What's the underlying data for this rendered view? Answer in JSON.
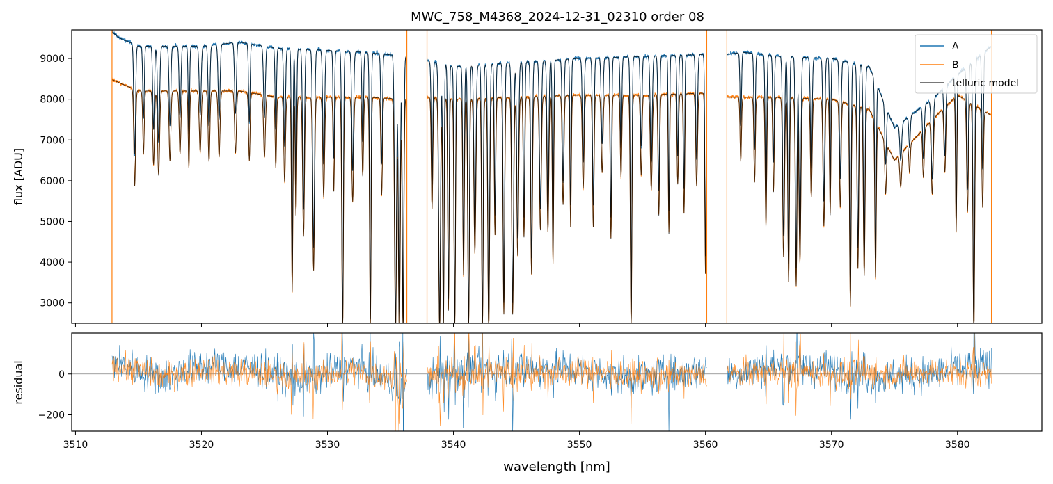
{
  "figure_title": "MWC_758_M4368_2024-12-31_02310  order 08",
  "colors": {
    "A": "#1f77b4",
    "B": "#ff7f0e",
    "model": "#000000",
    "zero_line": "#808080"
  },
  "legend": {
    "placement": "upper right",
    "items": [
      "A",
      "B",
      "telluric model"
    ]
  },
  "chart_data": [
    {
      "type": "line",
      "panel": "spectrum",
      "title": "MWC_758_M4368_2024-12-31_02310  order 08",
      "xlabel": "",
      "ylabel": "flux [ADU]",
      "xlim": [
        3509.7,
        3586.7
      ],
      "ylim": [
        2500,
        9700
      ],
      "grid": false,
      "xticks": [
        3510,
        3520,
        3530,
        3540,
        3550,
        3560,
        3570,
        3580
      ],
      "yticks": [
        3000,
        4000,
        5000,
        6000,
        7000,
        8000,
        9000
      ],
      "gaps": [
        [
          3536.3,
          3537.9
        ],
        [
          3560.1,
          3561.7
        ]
      ],
      "spikes_x": [
        3512.9,
        3536.3,
        3537.9,
        3560.1,
        3561.7,
        3582.7
      ],
      "continuum": {
        "A": {
          "x": [
            3512.9,
            3513.5,
            3515,
            3520,
            3523,
            3526,
            3530,
            3533,
            3536.3,
            3537.9,
            3540,
            3545,
            3550,
            3555,
            3560.1,
            3561.7,
            3563,
            3566,
            3570,
            3573,
            3575,
            3578,
            3580,
            3582.7
          ],
          "y": [
            9650,
            9500,
            9300,
            9300,
            9400,
            9250,
            9200,
            9150,
            9050,
            8950,
            8800,
            8900,
            9000,
            9050,
            9100,
            9100,
            9150,
            9050,
            9000,
            8800,
            7300,
            8000,
            8600,
            9300
          ]
        },
        "B": {
          "x": [
            3512.9,
            3515,
            3520,
            3523,
            3526,
            3530,
            3533,
            3536.3,
            3537.9,
            3540,
            3545,
            3550,
            3555,
            3560.1,
            3561.7,
            3565,
            3570,
            3573,
            3575,
            3578,
            3580,
            3582.7
          ],
          "y": [
            8480,
            8200,
            8200,
            8200,
            8050,
            8050,
            8050,
            8000,
            8050,
            8000,
            8050,
            8100,
            8100,
            8150,
            8050,
            8050,
            8000,
            7750,
            6500,
            7500,
            8100,
            7600
          ]
        }
      },
      "lines_y_min": [
        [
          3514.7,
          6650
        ],
        [
          3515.4,
          7550
        ],
        [
          3516.2,
          7250
        ],
        [
          3516.6,
          6950
        ],
        [
          3517.5,
          7350
        ],
        [
          3518.3,
          7550
        ],
        [
          3519.0,
          7150
        ],
        [
          3519.9,
          7600
        ],
        [
          3520.6,
          7350
        ],
        [
          3521.4,
          7500
        ],
        [
          3522.7,
          7650
        ],
        [
          3523.8,
          7450
        ],
        [
          3525.0,
          7550
        ],
        [
          3525.9,
          7250
        ],
        [
          3526.6,
          6850
        ],
        [
          3527.2,
          3750
        ],
        [
          3527.5,
          5900
        ],
        [
          3528.1,
          5300
        ],
        [
          3528.9,
          4350
        ],
        [
          3529.7,
          6400
        ],
        [
          3530.5,
          6550
        ],
        [
          3531.2,
          2500
        ],
        [
          3532.0,
          6250
        ],
        [
          3532.8,
          6950
        ],
        [
          3533.4,
          2600
        ],
        [
          3534.3,
          6400
        ],
        [
          3535.4,
          2500
        ],
        [
          3535.7,
          2500
        ],
        [
          3536.0,
          2500
        ],
        [
          3538.3,
          5900
        ],
        [
          3538.9,
          2500
        ],
        [
          3539.2,
          2500
        ],
        [
          3539.6,
          3100
        ],
        [
          3540.1,
          2500
        ],
        [
          3540.8,
          4050
        ],
        [
          3541.2,
          2500
        ],
        [
          3541.7,
          4650
        ],
        [
          3542.3,
          2500
        ],
        [
          3542.8,
          2500
        ],
        [
          3543.3,
          5150
        ],
        [
          3544.0,
          3000
        ],
        [
          3544.7,
          3000
        ],
        [
          3545.1,
          4600
        ],
        [
          3545.6,
          5100
        ],
        [
          3546.2,
          4100
        ],
        [
          3546.9,
          5300
        ],
        [
          3547.5,
          5250
        ],
        [
          3547.9,
          4400
        ],
        [
          3548.7,
          6000
        ],
        [
          3549.3,
          5400
        ],
        [
          3550.3,
          6450
        ],
        [
          3551.1,
          5400
        ],
        [
          3551.8,
          6900
        ],
        [
          3552.5,
          5100
        ],
        [
          3553.3,
          6800
        ],
        [
          3554.1,
          2600
        ],
        [
          3554.9,
          6850
        ],
        [
          3555.7,
          6450
        ],
        [
          3556.3,
          5750
        ],
        [
          3557.1,
          5250
        ],
        [
          3557.8,
          6600
        ],
        [
          3558.3,
          5800
        ],
        [
          3559.3,
          6550
        ],
        [
          3560.0,
          4150
        ],
        [
          3562.8,
          7350
        ],
        [
          3563.9,
          6750
        ],
        [
          3564.8,
          5500
        ],
        [
          3565.4,
          6450
        ],
        [
          3566.2,
          4650
        ],
        [
          3566.6,
          3950
        ],
        [
          3567.2,
          3850
        ],
        [
          3567.5,
          4500
        ],
        [
          3568.4,
          6300
        ],
        [
          3569.4,
          5500
        ],
        [
          3569.9,
          5800
        ],
        [
          3570.7,
          6050
        ],
        [
          3571.5,
          3300
        ],
        [
          3572.1,
          4350
        ],
        [
          3572.6,
          4150
        ],
        [
          3573.5,
          4100
        ],
        [
          3574.3,
          6400
        ],
        [
          3575.5,
          6500
        ],
        [
          3576.2,
          6800
        ],
        [
          3577.3,
          6550
        ],
        [
          3578.0,
          6050
        ],
        [
          3579.0,
          6600
        ],
        [
          3579.9,
          5050
        ],
        [
          3580.8,
          5800
        ],
        [
          3581.3,
          2500
        ],
        [
          3582.0,
          6300
        ]
      ]
    },
    {
      "type": "line",
      "panel": "residual",
      "title": "",
      "xlabel": "wavelength [nm]",
      "ylabel": "residual",
      "xlim": [
        3509.7,
        3586.7
      ],
      "ylim": [
        -280,
        200
      ],
      "grid": false,
      "xticks": [
        3510,
        3520,
        3530,
        3540,
        3550,
        3560,
        3570,
        3580
      ],
      "yticks": [
        -200,
        0
      ],
      "zero_line": 0,
      "gaps": [
        [
          3536.3,
          3537.9
        ],
        [
          3560.1,
          3561.7
        ]
      ],
      "series": [
        {
          "name": "A",
          "x_range": [
            3512.9,
            3582.7
          ],
          "offset_points": {
            "x": [
              3513,
              3517,
              3520,
              3524,
              3528,
              3532,
              3536,
              3540,
              3545,
              3550,
              3555,
              3560,
              3562,
              3566,
              3570,
              3574,
              3578,
              3582
            ],
            "y": [
              60,
              -20,
              40,
              30,
              -30,
              40,
              -60,
              20,
              30,
              20,
              -20,
              20,
              0,
              40,
              20,
              -20,
              0,
              40
            ]
          },
          "noise_amplitude": 45
        },
        {
          "name": "B",
          "x_range": [
            3512.9,
            3582.7
          ],
          "offset_points": {
            "x": [
              3513,
              3517,
              3520,
              3524,
              3528,
              3532,
              3536,
              3540,
              3545,
              3550,
              3555,
              3560,
              3562,
              3566,
              3570,
              3574,
              3578,
              3582
            ],
            "y": [
              40,
              -10,
              20,
              0,
              -20,
              10,
              -20,
              0,
              10,
              10,
              -10,
              0,
              0,
              10,
              0,
              0,
              10,
              0
            ]
          },
          "noise_amplitude": 35
        }
      ]
    }
  ]
}
